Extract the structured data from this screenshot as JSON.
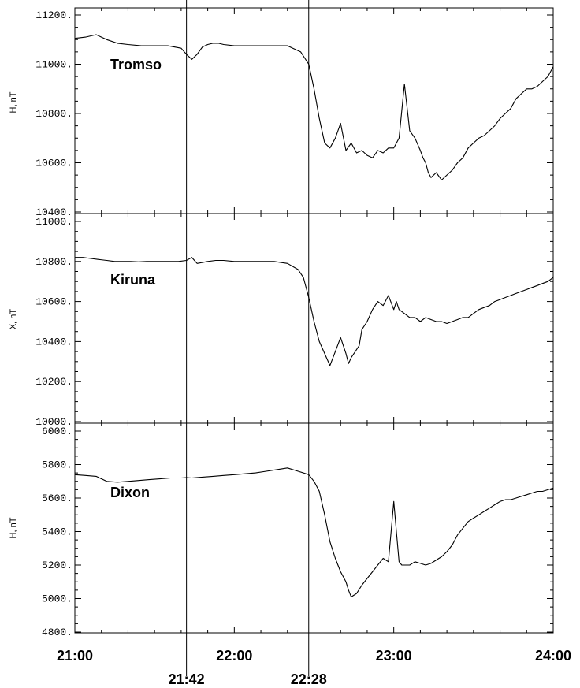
{
  "chart_data": [
    {
      "type": "line",
      "station": "Tromso",
      "ylabel": "H, nT",
      "ylim": [
        10400,
        11200
      ],
      "yticks": [
        10400,
        10600,
        10800,
        11000,
        11200
      ],
      "ytick_labels": [
        "10400.",
        "10600.",
        "10800.",
        "11000.",
        "11200."
      ],
      "x": [
        0,
        4,
        8,
        12,
        16,
        20,
        25,
        30,
        35,
        40,
        42,
        44,
        46,
        48,
        50,
        52,
        54,
        56,
        60,
        65,
        70,
        75,
        80,
        85,
        88,
        90,
        92,
        94,
        96,
        98,
        100,
        102,
        104,
        106,
        108,
        110,
        112,
        114,
        116,
        118,
        120,
        122,
        124,
        126,
        128,
        130,
        131,
        132,
        133,
        134,
        136,
        138,
        140,
        142,
        144,
        146,
        148,
        150,
        152,
        154,
        156,
        158,
        160,
        162,
        164,
        166,
        168,
        170,
        172,
        174,
        176,
        178,
        180
      ],
      "values": [
        11105,
        11110,
        11120,
        11100,
        11085,
        11080,
        11075,
        11075,
        11075,
        11065,
        11040,
        11020,
        11040,
        11070,
        11080,
        11085,
        11085,
        11080,
        11075,
        11075,
        11075,
        11075,
        11075,
        11050,
        11000,
        10900,
        10780,
        10680,
        10660,
        10700,
        10760,
        10650,
        10680,
        10640,
        10650,
        10630,
        10620,
        10650,
        10640,
        10660,
        10660,
        10700,
        10920,
        10730,
        10700,
        10650,
        10620,
        10600,
        10560,
        10540,
        10560,
        10530,
        10550,
        10570,
        10600,
        10620,
        10660,
        10680,
        10700,
        10710,
        10730,
        10750,
        10780,
        10800,
        10820,
        10860,
        10880,
        10900,
        10900,
        10910,
        10930,
        10950,
        10990
      ]
    },
    {
      "type": "line",
      "station": "Kiruna",
      "ylabel": "X, nT",
      "ylim": [
        10000,
        11000
      ],
      "yticks": [
        10000,
        10200,
        10400,
        10600,
        10800,
        11000
      ],
      "ytick_labels": [
        "10000.",
        "10200.",
        "10400.",
        "10600.",
        "10800.",
        "11000."
      ],
      "x": [
        0,
        3,
        6,
        9,
        12,
        15,
        18,
        21,
        24,
        27,
        30,
        33,
        36,
        39,
        42,
        44,
        46,
        48,
        50,
        53,
        56,
        60,
        65,
        70,
        75,
        80,
        84,
        86,
        88,
        90,
        92,
        94,
        96,
        98,
        100,
        102,
        103,
        104,
        106,
        107,
        108,
        110,
        112,
        114,
        116,
        118,
        120,
        121,
        122,
        124,
        126,
        128,
        130,
        132,
        134,
        136,
        138,
        140,
        142,
        144,
        146,
        148,
        150,
        152,
        154,
        156,
        158,
        160,
        162,
        164,
        166,
        168,
        170,
        172,
        174,
        176,
        178,
        180
      ],
      "values": [
        10820,
        10820,
        10815,
        10810,
        10805,
        10800,
        10800,
        10800,
        10798,
        10800,
        10800,
        10800,
        10800,
        10800,
        10805,
        10820,
        10790,
        10795,
        10800,
        10805,
        10805,
        10800,
        10800,
        10800,
        10800,
        10790,
        10760,
        10720,
        10620,
        10500,
        10400,
        10340,
        10280,
        10350,
        10420,
        10340,
        10290,
        10320,
        10360,
        10380,
        10460,
        10500,
        10560,
        10600,
        10580,
        10630,
        10560,
        10600,
        10560,
        10540,
        10520,
        10520,
        10500,
        10520,
        10510,
        10500,
        10500,
        10490,
        10500,
        10510,
        10520,
        10520,
        10540,
        10560,
        10570,
        10580,
        10600,
        10610,
        10620,
        10630,
        10640,
        10650,
        10660,
        10670,
        10680,
        10690,
        10700,
        10720
      ]
    },
    {
      "type": "line",
      "station": "Dixon",
      "ylabel": "H, nT",
      "ylim": [
        4800,
        6000
      ],
      "yticks": [
        4800,
        5000,
        5200,
        5400,
        5600,
        5800,
        6000
      ],
      "ytick_labels": [
        "4800.",
        "5000.",
        "5200.",
        "5400.",
        "5600.",
        "5800.",
        "6000."
      ],
      "x": [
        0,
        4,
        8,
        12,
        16,
        20,
        24,
        28,
        32,
        36,
        40,
        42,
        44,
        48,
        52,
        56,
        60,
        64,
        68,
        72,
        76,
        80,
        84,
        88,
        90,
        92,
        94,
        96,
        98,
        100,
        102,
        103,
        104,
        106,
        108,
        110,
        112,
        114,
        116,
        118,
        120,
        121,
        122,
        123,
        124,
        126,
        128,
        130,
        132,
        134,
        136,
        138,
        140,
        142,
        144,
        146,
        148,
        150,
        152,
        154,
        156,
        158,
        160,
        162,
        164,
        166,
        168,
        170,
        172,
        174,
        176,
        178,
        180
      ],
      "values": [
        5740,
        5735,
        5730,
        5700,
        5695,
        5700,
        5705,
        5710,
        5715,
        5720,
        5720,
        5722,
        5720,
        5725,
        5730,
        5735,
        5740,
        5745,
        5750,
        5760,
        5770,
        5780,
        5760,
        5740,
        5700,
        5640,
        5500,
        5340,
        5240,
        5160,
        5100,
        5050,
        5010,
        5030,
        5080,
        5120,
        5160,
        5200,
        5240,
        5220,
        5580,
        5400,
        5220,
        5200,
        5200,
        5200,
        5220,
        5210,
        5200,
        5210,
        5230,
        5250,
        5280,
        5320,
        5380,
        5420,
        5460,
        5480,
        5500,
        5520,
        5540,
        5560,
        5580,
        5590,
        5590,
        5600,
        5610,
        5620,
        5630,
        5640,
        5640,
        5650,
        5660
      ]
    }
  ],
  "x_axis": {
    "range_minutes": [
      0,
      180
    ],
    "major_ticks": [
      0,
      60,
      120,
      180
    ],
    "major_labels": [
      "21:00",
      "22:00",
      "23:00",
      "24:00"
    ],
    "markers": [
      42,
      88
    ],
    "marker_labels": [
      "21:42",
      "22:28"
    ]
  },
  "colors": {
    "line": "#000000",
    "background": "#ffffff"
  }
}
